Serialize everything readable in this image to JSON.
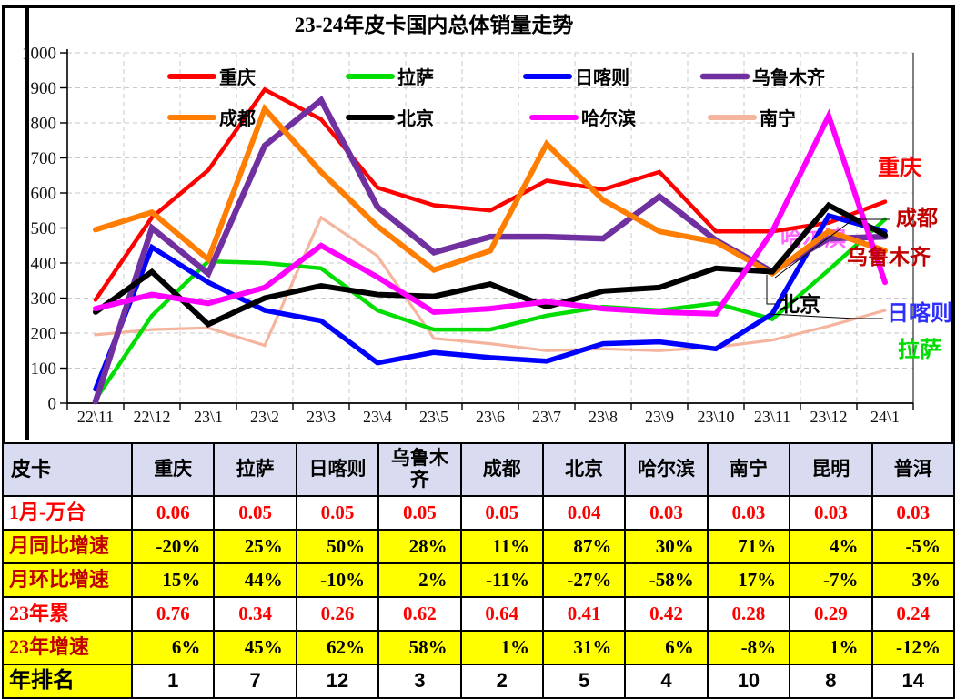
{
  "title": "23-24年皮卡国内总体销量走势",
  "chart_data": {
    "type": "line",
    "title": "23-24年皮卡国内总体销量走势",
    "xlabel": "",
    "ylabel": "",
    "ylim": [
      0,
      1000
    ],
    "y_ticks": [
      0,
      100,
      200,
      300,
      400,
      500,
      600,
      700,
      800,
      900,
      1000
    ],
    "grid": true,
    "legend_position": "top-inside",
    "categories": [
      "22\\11",
      "22\\12",
      "23\\1",
      "23\\2",
      "23\\3",
      "23\\4",
      "23\\5",
      "23\\6",
      "23\\7",
      "23\\8",
      "23\\9",
      "23\\10",
      "23\\11",
      "23\\12",
      "24\\1"
    ],
    "series": [
      {
        "name": "重庆",
        "color": "#FF0000",
        "values": [
          295,
          530,
          665,
          895,
          810,
          615,
          565,
          550,
          635,
          610,
          660,
          490,
          490,
          515,
          575
        ]
      },
      {
        "name": "拉萨",
        "color": "#00DD00",
        "values": [
          10,
          250,
          405,
          400,
          385,
          265,
          210,
          210,
          250,
          275,
          265,
          285,
          240,
          380,
          525
        ]
      },
      {
        "name": "日喀则",
        "color": "#0000FF",
        "values": [
          40,
          445,
          345,
          265,
          235,
          115,
          145,
          130,
          120,
          170,
          175,
          155,
          255,
          535,
          490
        ]
      },
      {
        "name": "乌鲁木齐",
        "color": "#7030A0",
        "values": [
          5,
          500,
          370,
          735,
          865,
          560,
          430,
          475,
          475,
          470,
          590,
          465,
          375,
          470,
          475
        ]
      },
      {
        "name": "成都",
        "color": "#FF7D00",
        "values": [
          495,
          545,
          410,
          840,
          660,
          505,
          380,
          435,
          740,
          580,
          490,
          460,
          370,
          490,
          435
        ]
      },
      {
        "name": "北京",
        "color": "#000000",
        "values": [
          260,
          375,
          225,
          300,
          335,
          310,
          305,
          340,
          275,
          320,
          330,
          385,
          375,
          565,
          480
        ]
      },
      {
        "name": "哈尔滨",
        "color": "#FF00FF",
        "values": [
          270,
          310,
          285,
          330,
          450,
          360,
          260,
          270,
          290,
          270,
          260,
          255,
          490,
          820,
          345
        ]
      },
      {
        "name": "南宁",
        "color": "#F4B49E",
        "values": [
          195,
          210,
          215,
          165,
          530,
          420,
          185,
          170,
          150,
          155,
          150,
          160,
          180,
          220,
          265
        ]
      }
    ],
    "right_labels": [
      {
        "text": "重庆",
        "color": "#FF0000"
      },
      {
        "text": "成都",
        "color": "#C00000"
      },
      {
        "text": "哈尔滨",
        "color": "#FF66FF"
      },
      {
        "text": "乌鲁木齐",
        "color": "#C00000"
      },
      {
        "text": "北京",
        "color": "#000000"
      },
      {
        "text": "日喀则",
        "color": "#2E2EFF"
      },
      {
        "text": "拉萨",
        "color": "#00DD00"
      }
    ]
  },
  "table": {
    "corner_label": "皮卡",
    "columns": [
      "重庆",
      "拉萨",
      "日喀则",
      "乌鲁木齐",
      "成都",
      "北京",
      "哈尔滨",
      "南宁",
      "昆明",
      "普洱"
    ],
    "rows": [
      {
        "label": "1月-万台",
        "style": "red",
        "values": [
          "0.06",
          "0.05",
          "0.05",
          "0.05",
          "0.05",
          "0.04",
          "0.03",
          "0.03",
          "0.03",
          "0.03"
        ]
      },
      {
        "label": "月同比增速",
        "style": "pct",
        "values": [
          "-20%",
          "25%",
          "50%",
          "28%",
          "11%",
          "87%",
          "30%",
          "71%",
          "4%",
          "-5%"
        ]
      },
      {
        "label": "月环比增速",
        "style": "pct",
        "values": [
          "15%",
          "44%",
          "-10%",
          "2%",
          "-11%",
          "-27%",
          "-58%",
          "17%",
          "-7%",
          "3%"
        ]
      },
      {
        "label": "23年累",
        "style": "red",
        "values": [
          "0.76",
          "0.34",
          "0.26",
          "0.62",
          "0.64",
          "0.41",
          "0.42",
          "0.28",
          "0.29",
          "0.24"
        ]
      },
      {
        "label": "23年增速",
        "style": "pct",
        "values": [
          "6%",
          "45%",
          "62%",
          "58%",
          "1%",
          "31%",
          "6%",
          "-8%",
          "1%",
          "-12%"
        ]
      },
      {
        "label": "年排名",
        "style": "rank",
        "values": [
          "1",
          "7",
          "12",
          "3",
          "2",
          "5",
          "4",
          "10",
          "8",
          "14"
        ]
      }
    ]
  },
  "colors": {
    "page_border": "#000000",
    "header_bg": "#D9DCF0",
    "highlight_row_bg": "#FFFF00",
    "red_value": "#FF0000",
    "dark_red_label": "#C00000",
    "gridline": "#C9C9C9"
  }
}
